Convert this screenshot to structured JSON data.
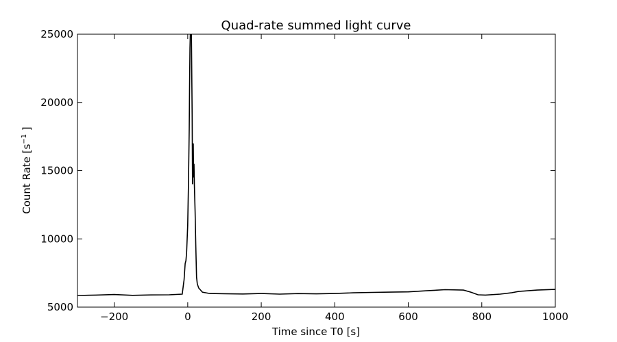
{
  "chart_data": {
    "type": "line",
    "title": "Quad-rate summed light curve",
    "xlabel": "Time since T0 [s]",
    "ylabel": {
      "prefix": "Count Rate [s",
      "superscript": "−1",
      "suffix": " ]"
    },
    "xlim": [
      -300,
      1000
    ],
    "ylim": [
      5000,
      25000
    ],
    "xticks": [
      {
        "value": -200,
        "label": "−200"
      },
      {
        "value": 0,
        "label": "0"
      },
      {
        "value": 200,
        "label": "200"
      },
      {
        "value": 400,
        "label": "400"
      },
      {
        "value": 600,
        "label": "600"
      },
      {
        "value": 800,
        "label": "800"
      },
      {
        "value": 1000,
        "label": "1000"
      }
    ],
    "yticks": [
      {
        "value": 5000,
        "label": "5000"
      },
      {
        "value": 10000,
        "label": "10000"
      },
      {
        "value": 15000,
        "label": "15000"
      },
      {
        "value": 20000,
        "label": "20000"
      },
      {
        "value": 25000,
        "label": "25000"
      }
    ],
    "grid": false,
    "line_color": "#000000",
    "series": [
      {
        "x": [
          -300,
          -250,
          -200,
          -150,
          -100,
          -50,
          -15,
          -10,
          -7,
          -5,
          -3,
          0,
          2,
          4,
          5,
          6,
          8,
          10,
          12,
          13,
          14,
          15,
          16,
          17,
          18,
          20,
          22,
          24,
          26,
          30,
          40,
          60,
          100,
          150,
          200,
          250,
          300,
          350,
          400,
          450,
          500,
          550,
          600,
          650,
          700,
          750,
          770,
          790,
          810,
          850,
          880,
          900,
          950,
          1000
        ],
        "y": [
          5850,
          5880,
          5920,
          5860,
          5890,
          5900,
          5950,
          7000,
          8200,
          8400,
          9000,
          11000,
          14000,
          18000,
          21000,
          24000,
          26000,
          25000,
          19000,
          14000,
          16500,
          17000,
          14500,
          15500,
          14000,
          12000,
          9500,
          7200,
          6700,
          6400,
          6100,
          6000,
          5980,
          5960,
          6000,
          5950,
          5990,
          5970,
          6000,
          6050,
          6080,
          6100,
          6120,
          6200,
          6280,
          6250,
          6100,
          5900,
          5880,
          5950,
          6050,
          6150,
          6250,
          6300
        ]
      }
    ]
  }
}
